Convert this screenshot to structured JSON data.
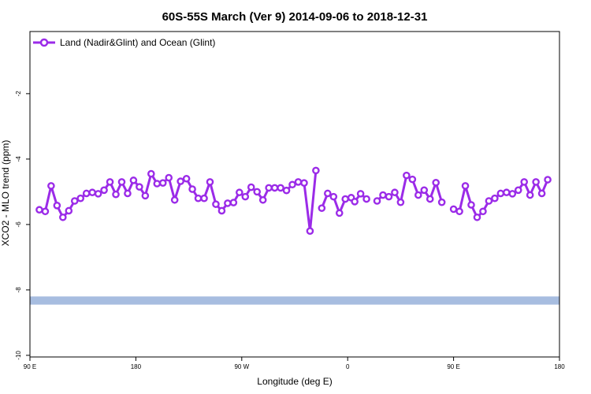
{
  "chart_data": {
    "type": "line",
    "title": "60S-55S March (Ver 9)   2014-09-06 to 2018-12-31",
    "xlabel": "Longitude (deg E)",
    "ylabel": "XCO2 - MLO trend (ppm)",
    "x_tick_labels": [
      "90 E",
      "180",
      "90 W",
      "0",
      "90 E",
      "180"
    ],
    "x_tick_positions": [
      90,
      180,
      270,
      360,
      450,
      540
    ],
    "xlim": [
      90,
      540
    ],
    "y_ticks": [
      -10,
      -8,
      -6,
      -4,
      -2
    ],
    "y_tick_labels": [
      "-10",
      "-8",
      "-6",
      "-4",
      "-2"
    ],
    "ylim": [
      -10.05,
      -0.1
    ],
    "grid": false,
    "legend_position": "top-left",
    "band": {
      "y_from": -8.45,
      "y_to": -8.2,
      "color": "#a7bde0"
    },
    "series": [
      {
        "name": "Land (Nadir&Glint) and Ocean (Glint)",
        "color": "#9b2be8",
        "segments": [
          [
            [
              98,
              -5.55
            ],
            [
              103,
              -5.6
            ],
            [
              108,
              -4.82
            ],
            [
              113,
              -5.42
            ],
            [
              118,
              -5.78
            ],
            [
              123,
              -5.58
            ],
            [
              128,
              -5.28
            ],
            [
              133,
              -5.2
            ],
            [
              138,
              -5.05
            ],
            [
              143,
              -5.02
            ],
            [
              148,
              -5.06
            ],
            [
              153,
              -4.95
            ],
            [
              158,
              -4.7
            ],
            [
              163,
              -5.08
            ],
            [
              168,
              -4.7
            ],
            [
              173,
              -5.05
            ],
            [
              178,
              -4.65
            ],
            [
              183,
              -4.85
            ],
            [
              188,
              -5.12
            ],
            [
              193,
              -4.45
            ],
            [
              198,
              -4.75
            ],
            [
              203,
              -4.73
            ],
            [
              208,
              -4.57
            ],
            [
              213,
              -5.25
            ],
            [
              218,
              -4.68
            ],
            [
              223,
              -4.6
            ],
            [
              228,
              -4.92
            ],
            [
              233,
              -5.2
            ],
            [
              238,
              -5.2
            ],
            [
              243,
              -4.7
            ],
            [
              248,
              -5.38
            ],
            [
              253,
              -5.58
            ],
            [
              258,
              -5.35
            ],
            [
              263,
              -5.33
            ],
            [
              268,
              -5.02
            ],
            [
              273,
              -5.15
            ],
            [
              278,
              -4.86
            ],
            [
              283,
              -5.0
            ],
            [
              288,
              -5.25
            ],
            [
              293,
              -4.88
            ],
            [
              298,
              -4.88
            ],
            [
              303,
              -4.88
            ],
            [
              308,
              -4.96
            ],
            [
              313,
              -4.78
            ],
            [
              318,
              -4.7
            ],
            [
              323,
              -4.73
            ],
            [
              328,
              -6.2
            ],
            [
              333,
              -4.35
            ]
          ],
          [
            [
              338,
              -5.5
            ],
            [
              343,
              -5.05
            ],
            [
              348,
              -5.15
            ],
            [
              353,
              -5.65
            ],
            [
              358,
              -5.22
            ],
            [
              363,
              -5.18
            ],
            [
              366,
              -5.3
            ],
            [
              371,
              -5.06
            ],
            [
              376,
              -5.22
            ]
          ],
          [
            [
              385,
              -5.28
            ],
            [
              390,
              -5.1
            ],
            [
              395,
              -5.15
            ],
            [
              400,
              -5.02
            ],
            [
              405,
              -5.32
            ],
            [
              410,
              -4.5
            ],
            [
              415,
              -4.62
            ],
            [
              420,
              -5.1
            ],
            [
              425,
              -4.95
            ],
            [
              430,
              -5.22
            ],
            [
              435,
              -4.72
            ],
            [
              440,
              -5.32
            ]
          ],
          [
            [
              450,
              -5.53
            ],
            [
              455,
              -5.6
            ],
            [
              460,
              -4.82
            ],
            [
              465,
              -5.4
            ],
            [
              470,
              -5.78
            ],
            [
              475,
              -5.6
            ],
            [
              480,
              -5.28
            ],
            [
              485,
              -5.2
            ],
            [
              490,
              -5.05
            ],
            [
              495,
              -5.02
            ],
            [
              500,
              -5.06
            ],
            [
              505,
              -4.95
            ],
            [
              510,
              -4.7
            ],
            [
              515,
              -5.1
            ],
            [
              520,
              -4.7
            ],
            [
              525,
              -5.05
            ],
            [
              530,
              -4.63
            ]
          ]
        ]
      }
    ]
  }
}
